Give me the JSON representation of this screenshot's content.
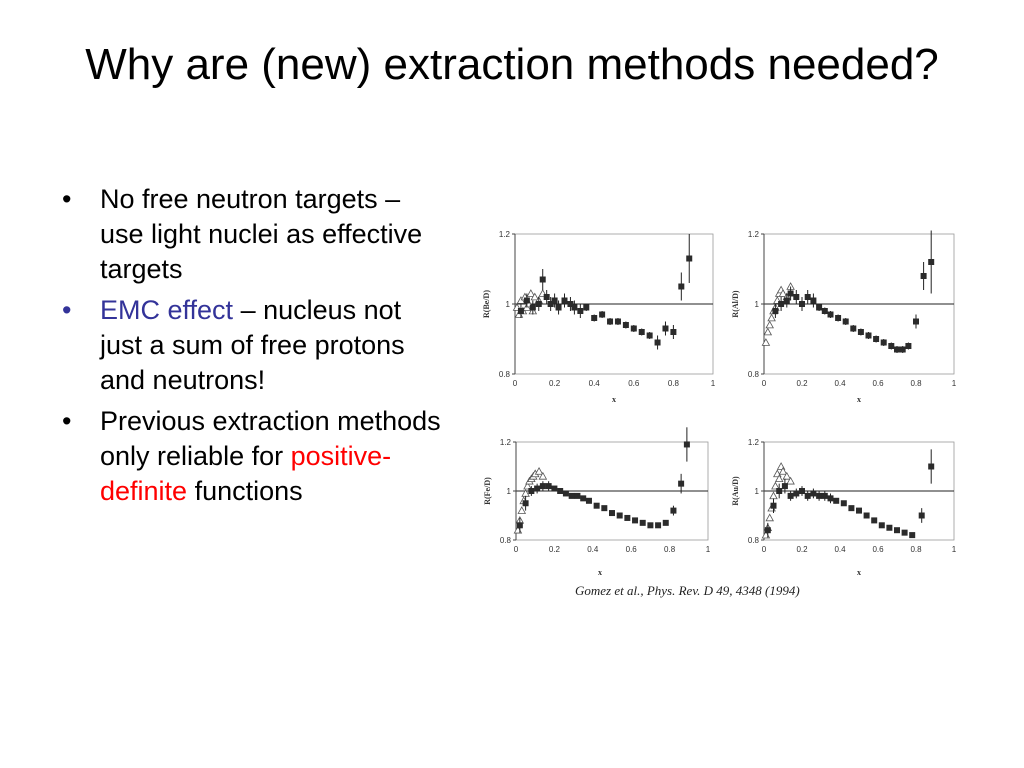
{
  "slide": {
    "title": "Why are (new) extraction methods needed?",
    "bullets": [
      {
        "text": "No free neutron targets – use light nuclei as effective targets"
      },
      {
        "highlight": "EMC effect",
        "highlight_color": "#333399",
        "text_after": " – nucleus not just a sum of free protons and neutrons!"
      },
      {
        "text_before": "Previous extraction methods only reliable for ",
        "highlight": "positive-definite",
        "highlight_color": "#ff0000",
        "text_after": " functions"
      }
    ],
    "bullet_glyph": "•",
    "caption": "Gomez et al., Phys. Rev. D 49, 4348 (1994)"
  },
  "chart_data": [
    {
      "type": "scatter",
      "ylabel": "R(Be/D)",
      "xlabel": "x",
      "xlim": [
        0,
        1
      ],
      "ylim": [
        0.8,
        1.2
      ],
      "xticks": [
        "0",
        "0.2",
        "0.4",
        "0.6",
        "0.8",
        "1"
      ],
      "yticks": [
        "0.8",
        "1",
        "1.2"
      ],
      "ref_line": 1,
      "series": [
        {
          "marker": "open-triangle",
          "x": [
            0.01,
            0.02,
            0.03,
            0.04,
            0.05,
            0.06,
            0.07,
            0.08,
            0.09,
            0.1,
            0.12,
            0.14
          ],
          "y": [
            0.99,
            0.97,
            1.01,
            0.98,
            1.02,
            0.99,
            1.0,
            1.03,
            0.98,
            1.02,
            1.01,
            1.03
          ]
        },
        {
          "marker": "filled-square",
          "x": [
            0.03,
            0.06,
            0.09,
            0.12,
            0.14,
            0.16,
            0.18,
            0.2,
            0.22,
            0.25,
            0.28,
            0.3,
            0.33,
            0.36,
            0.4,
            0.44,
            0.48,
            0.52,
            0.56,
            0.6,
            0.64,
            0.68,
            0.72,
            0.76,
            0.8,
            0.84,
            0.88
          ],
          "y": [
            0.98,
            1.01,
            0.99,
            1.0,
            1.07,
            1.02,
            1.0,
            1.01,
            0.99,
            1.01,
            1.0,
            0.99,
            0.98,
            0.99,
            0.96,
            0.97,
            0.95,
            0.95,
            0.94,
            0.93,
            0.92,
            0.91,
            0.89,
            0.93,
            0.92,
            1.05,
            1.13
          ],
          "err": [
            0.02,
            0.02,
            0.02,
            0.02,
            0.03,
            0.02,
            0.02,
            0.02,
            0.02,
            0.02,
            0.02,
            0.02,
            0.02,
            0.01,
            0.01,
            0.01,
            0.01,
            0.01,
            0.01,
            0.01,
            0.01,
            0.01,
            0.02,
            0.02,
            0.02,
            0.04,
            0.07
          ]
        }
      ]
    },
    {
      "type": "scatter",
      "ylabel": "R(Al/D)",
      "xlabel": "x",
      "xlim": [
        0,
        1
      ],
      "ylim": [
        0.8,
        1.2
      ],
      "xticks": [
        "0",
        "0.2",
        "0.4",
        "0.6",
        "0.8",
        "1"
      ],
      "yticks": [
        "0.8",
        "1",
        "1.2"
      ],
      "ref_line": 1,
      "series": [
        {
          "marker": "open-triangle",
          "x": [
            0.01,
            0.02,
            0.03,
            0.04,
            0.05,
            0.06,
            0.07,
            0.08,
            0.09,
            0.1,
            0.12,
            0.14
          ],
          "y": [
            0.89,
            0.92,
            0.94,
            0.96,
            0.98,
            0.99,
            1.01,
            1.03,
            1.04,
            1.03,
            1.02,
            1.05
          ]
        },
        {
          "marker": "filled-square",
          "x": [
            0.06,
            0.09,
            0.12,
            0.14,
            0.17,
            0.2,
            0.23,
            0.26,
            0.29,
            0.32,
            0.35,
            0.39,
            0.43,
            0.47,
            0.51,
            0.55,
            0.59,
            0.63,
            0.67,
            0.7,
            0.73,
            0.76,
            0.8,
            0.84,
            0.88
          ],
          "y": [
            0.98,
            1.0,
            1.01,
            1.03,
            1.02,
            1.0,
            1.02,
            1.01,
            0.99,
            0.98,
            0.97,
            0.96,
            0.95,
            0.93,
            0.92,
            0.91,
            0.9,
            0.89,
            0.88,
            0.87,
            0.87,
            0.88,
            0.95,
            1.08,
            1.12
          ],
          "err": [
            0.02,
            0.02,
            0.02,
            0.02,
            0.02,
            0.02,
            0.02,
            0.02,
            0.01,
            0.01,
            0.01,
            0.01,
            0.01,
            0.01,
            0.01,
            0.01,
            0.01,
            0.01,
            0.01,
            0.01,
            0.01,
            0.01,
            0.02,
            0.04,
            0.09
          ]
        }
      ]
    },
    {
      "type": "scatter",
      "ylabel": "R(Fe/D)",
      "xlabel": "x",
      "xlim": [
        0,
        1
      ],
      "ylim": [
        0.8,
        1.2
      ],
      "xticks": [
        "0",
        "0.2",
        "0.4",
        "0.6",
        "0.8",
        "1"
      ],
      "yticks": [
        "0.8",
        "1",
        "1.2"
      ],
      "ref_line": 1,
      "series": [
        {
          "marker": "open-triangle",
          "x": [
            0.01,
            0.02,
            0.03,
            0.04,
            0.05,
            0.06,
            0.07,
            0.08,
            0.09,
            0.1,
            0.12,
            0.14
          ],
          "y": [
            0.84,
            0.88,
            0.92,
            0.96,
            0.99,
            1.02,
            1.04,
            1.05,
            1.06,
            1.07,
            1.08,
            1.06
          ]
        },
        {
          "marker": "filled-square",
          "x": [
            0.02,
            0.05,
            0.08,
            0.11,
            0.14,
            0.17,
            0.2,
            0.23,
            0.26,
            0.29,
            0.32,
            0.35,
            0.38,
            0.42,
            0.46,
            0.5,
            0.54,
            0.58,
            0.62,
            0.66,
            0.7,
            0.74,
            0.78,
            0.82,
            0.86
          ],
          "y": [
            0.86,
            0.95,
            1.0,
            1.01,
            1.02,
            1.02,
            1.01,
            1.0,
            0.99,
            0.98,
            0.98,
            0.97,
            0.96,
            0.94,
            0.93,
            0.91,
            0.9,
            0.89,
            0.88,
            0.87,
            0.86,
            0.86,
            0.87,
            0.92,
            1.03
          ],
          "err": [
            0.03,
            0.03,
            0.02,
            0.02,
            0.02,
            0.02,
            0.01,
            0.01,
            0.01,
            0.01,
            0.01,
            0.01,
            0.01,
            0.01,
            0.01,
            0.01,
            0.01,
            0.01,
            0.01,
            0.01,
            0.01,
            0.01,
            0.01,
            0.02,
            0.04
          ]
        },
        {
          "marker": "filled-square",
          "x": [
            0.89
          ],
          "y": [
            1.19
          ],
          "err": [
            0.07
          ]
        }
      ]
    },
    {
      "type": "scatter",
      "ylabel": "R(Au/D)",
      "xlabel": "x",
      "xlim": [
        0,
        1
      ],
      "ylim": [
        0.8,
        1.2
      ],
      "xticks": [
        "0",
        "0.2",
        "0.4",
        "0.6",
        "0.8",
        "1"
      ],
      "yticks": [
        "0.8",
        "1",
        "1.2"
      ],
      "ref_line": 1,
      "series": [
        {
          "marker": "open-triangle",
          "x": [
            0.01,
            0.02,
            0.03,
            0.04,
            0.05,
            0.06,
            0.07,
            0.08,
            0.09,
            0.1,
            0.12,
            0.14
          ],
          "y": [
            0.82,
            0.85,
            0.89,
            0.93,
            0.98,
            1.02,
            1.07,
            1.05,
            1.1,
            1.08,
            1.06,
            1.04
          ]
        },
        {
          "marker": "filled-square",
          "x": [
            0.02,
            0.05,
            0.08,
            0.11,
            0.14,
            0.17,
            0.2,
            0.23,
            0.26,
            0.29,
            0.32,
            0.35,
            0.38,
            0.42,
            0.46,
            0.5,
            0.54,
            0.58,
            0.62,
            0.66,
            0.7,
            0.74,
            0.78,
            0.83,
            0.88
          ],
          "y": [
            0.84,
            0.94,
            1.0,
            1.02,
            0.98,
            0.99,
            1.0,
            0.98,
            0.99,
            0.98,
            0.98,
            0.97,
            0.96,
            0.95,
            0.93,
            0.92,
            0.9,
            0.88,
            0.86,
            0.85,
            0.84,
            0.83,
            0.82,
            0.9,
            1.1
          ],
          "err": [
            0.03,
            0.03,
            0.03,
            0.03,
            0.02,
            0.02,
            0.02,
            0.02,
            0.02,
            0.02,
            0.02,
            0.02,
            0.01,
            0.01,
            0.01,
            0.01,
            0.01,
            0.01,
            0.01,
            0.01,
            0.01,
            0.01,
            0.01,
            0.03,
            0.07
          ]
        }
      ]
    }
  ]
}
